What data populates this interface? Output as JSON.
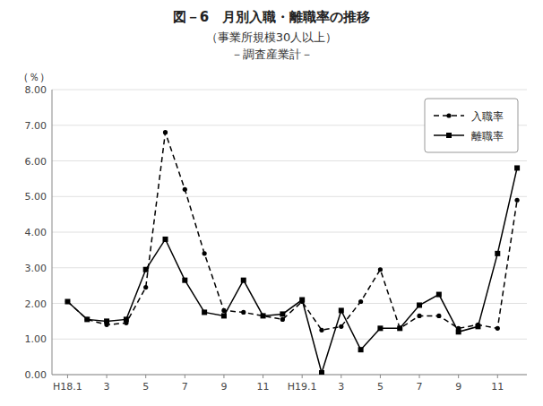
{
  "chart_data": {
    "type": "line",
    "title": "図－6　月別入職・離職率の推移",
    "subtitle": [
      "（事業所規模30人以上）",
      "－調査産業計－"
    ],
    "y_label": "（％）",
    "categories": [
      "H18.1",
      null,
      "3",
      null,
      "5",
      null,
      "7",
      null,
      "9",
      null,
      "11",
      null,
      "H19.1",
      null,
      "3",
      null,
      "5",
      null,
      "7",
      null,
      "9",
      null,
      "11",
      null
    ],
    "ylim": [
      0.0,
      8.0
    ],
    "yticks": [
      {
        "value": 0.0,
        "label": "0.00"
      },
      {
        "value": 1.0,
        "label": "1.00"
      },
      {
        "value": 2.0,
        "label": "2.00"
      },
      {
        "value": 3.0,
        "label": "3.00"
      },
      {
        "value": 4.0,
        "label": "4.00"
      },
      {
        "value": 5.0,
        "label": "5.00"
      },
      {
        "value": 6.0,
        "label": "6.00"
      },
      {
        "value": 7.0,
        "label": "7.00"
      },
      {
        "value": 8.0,
        "label": "8.00"
      }
    ],
    "grid": "y",
    "legend": "upper right",
    "series": [
      {
        "name": "入職率",
        "color": "#000000",
        "marker": "point",
        "line_style": "dashed",
        "values": [
          2.05,
          1.55,
          1.4,
          1.45,
          2.45,
          6.8,
          5.2,
          3.4,
          1.8,
          1.75,
          1.65,
          1.55,
          2.05,
          1.25,
          1.35,
          2.05,
          2.95,
          1.3,
          1.65,
          1.65,
          1.3,
          1.4,
          1.3,
          4.9
        ]
      },
      {
        "name": "離職率",
        "color": "#000000",
        "marker": "square",
        "line_style": "solid",
        "values": [
          2.05,
          1.55,
          1.5,
          1.55,
          2.95,
          3.8,
          2.65,
          1.75,
          1.65,
          2.65,
          1.65,
          1.7,
          2.1,
          0.05,
          1.8,
          0.7,
          1.3,
          1.3,
          1.95,
          2.25,
          1.2,
          1.35,
          3.4,
          5.8
        ]
      }
    ]
  }
}
